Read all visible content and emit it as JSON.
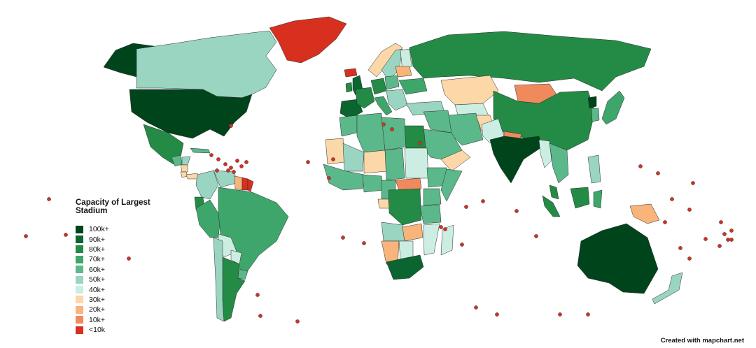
{
  "legend": {
    "title": "Capacity of Largest Stadium",
    "items": [
      {
        "label": "100k+",
        "color": "#00441b"
      },
      {
        "label": "90k+",
        "color": "#0b6530"
      },
      {
        "label": "80k+",
        "color": "#238b45"
      },
      {
        "label": "70k+",
        "color": "#3ea66b"
      },
      {
        "label": "60k+",
        "color": "#5bb88a"
      },
      {
        "label": "50k+",
        "color": "#99d5c1"
      },
      {
        "label": "40k+",
        "color": "#cceee2"
      },
      {
        "label": "30k+",
        "color": "#fcd7a8"
      },
      {
        "label": "20k+",
        "color": "#f8b47a"
      },
      {
        "label": "10k+",
        "color": "#f08a5d"
      },
      {
        "label": "<10k",
        "color": "#d7301f"
      }
    ]
  },
  "credit": "Created with mapchart.net",
  "regions": [
    {
      "name": "canada",
      "tier": "50k+"
    },
    {
      "name": "greenland",
      "tier": "<10k"
    },
    {
      "name": "usa",
      "tier": "100k+"
    },
    {
      "name": "alaska",
      "tier": "100k+"
    },
    {
      "name": "mexico",
      "tier": "80k+"
    },
    {
      "name": "guatemala",
      "tier": "60k+"
    },
    {
      "name": "honduras",
      "tier": "50k+"
    },
    {
      "name": "nicaragua",
      "tier": "30k+"
    },
    {
      "name": "costa-rica",
      "tier": "30k+"
    },
    {
      "name": "panama",
      "tier": "30k+"
    },
    {
      "name": "cuba",
      "tier": "60k+"
    },
    {
      "name": "colombia",
      "tier": "50k+"
    },
    {
      "name": "venezuela",
      "tier": "50k+"
    },
    {
      "name": "guyana",
      "tier": "20k+"
    },
    {
      "name": "suriname",
      "tier": "<10k"
    },
    {
      "name": "french-guiana",
      "tier": "<10k"
    },
    {
      "name": "ecuador",
      "tier": "80k+"
    },
    {
      "name": "peru",
      "tier": "70k+"
    },
    {
      "name": "brazil",
      "tier": "70k+"
    },
    {
      "name": "bolivia",
      "tier": "40k+"
    },
    {
      "name": "paraguay",
      "tier": "40k+"
    },
    {
      "name": "chile",
      "tier": "50k+"
    },
    {
      "name": "argentina",
      "tier": "80k+"
    },
    {
      "name": "uruguay",
      "tier": "60k+"
    },
    {
      "name": "iceland",
      "tier": "<10k"
    },
    {
      "name": "ireland",
      "tier": "80k+"
    },
    {
      "name": "uk",
      "tier": "90k+"
    },
    {
      "name": "norway",
      "tier": "30k+"
    },
    {
      "name": "sweden",
      "tier": "50k+"
    },
    {
      "name": "finland",
      "tier": "40k+"
    },
    {
      "name": "iberia",
      "tier": "90k+"
    },
    {
      "name": "france",
      "tier": "80k+"
    },
    {
      "name": "germany",
      "tier": "80k+"
    },
    {
      "name": "poland",
      "tier": "60k+"
    },
    {
      "name": "baltics",
      "tier": "20k+"
    },
    {
      "name": "italy",
      "tier": "70k+"
    },
    {
      "name": "balkans",
      "tier": "50k+"
    },
    {
      "name": "ukraine",
      "tier": "70k+"
    },
    {
      "name": "turkey",
      "tier": "50k+"
    },
    {
      "name": "russia",
      "tier": "80k+"
    },
    {
      "name": "kazakhstan",
      "tier": "30k+"
    },
    {
      "name": "central-asia",
      "tier": "40k+"
    },
    {
      "name": "mongolia",
      "tier": "10k+"
    },
    {
      "name": "china",
      "tier": "80k+"
    },
    {
      "name": "korea",
      "tier": "60k+"
    },
    {
      "name": "north-korea",
      "tier": "100k+"
    },
    {
      "name": "japan",
      "tier": "70k+"
    },
    {
      "name": "iran",
      "tier": "60k+"
    },
    {
      "name": "iraq-syria",
      "tier": "60k+"
    },
    {
      "name": "saudi-arabia",
      "tier": "60k+"
    },
    {
      "name": "yemen-oman",
      "tier": "30k+"
    },
    {
      "name": "afghanistan",
      "tier": "30k+"
    },
    {
      "name": "pakistan",
      "tier": "40k+"
    },
    {
      "name": "india",
      "tier": "100k+"
    },
    {
      "name": "nepal",
      "tier": "10k+"
    },
    {
      "name": "myanmar",
      "tier": "40k+"
    },
    {
      "name": "indochina",
      "tier": "60k+"
    },
    {
      "name": "malaysia",
      "tier": "80k+"
    },
    {
      "name": "sumatra",
      "tier": "80k+"
    },
    {
      "name": "borneo",
      "tier": "80k+"
    },
    {
      "name": "sulawesi",
      "tier": "70k+"
    },
    {
      "name": "philippines",
      "tier": "50k+"
    },
    {
      "name": "papua-new-guinea",
      "tier": "20k+"
    },
    {
      "name": "australia",
      "tier": "100k+"
    },
    {
      "name": "new-zealand",
      "tier": "50k+"
    },
    {
      "name": "morocco",
      "tier": "60k+"
    },
    {
      "name": "algeria",
      "tier": "60k+"
    },
    {
      "name": "libya",
      "tier": "60k+"
    },
    {
      "name": "egypt",
      "tier": "80k+"
    },
    {
      "name": "mauritania",
      "tier": "30k+"
    },
    {
      "name": "mali",
      "tier": "50k+"
    },
    {
      "name": "niger",
      "tier": "30k+"
    },
    {
      "name": "chad",
      "tier": "60k+"
    },
    {
      "name": "sudan",
      "tier": "40k+"
    },
    {
      "name": "ethiopia",
      "tier": "60k+"
    },
    {
      "name": "somalia",
      "tier": "60k+"
    },
    {
      "name": "west-africa",
      "tier": "60k+"
    },
    {
      "name": "nigeria",
      "tier": "60k+"
    },
    {
      "name": "cameroon",
      "tier": "60k+"
    },
    {
      "name": "car",
      "tier": "10k+"
    },
    {
      "name": "gabon",
      "tier": "30k+"
    },
    {
      "name": "drc",
      "tier": "80k+"
    },
    {
      "name": "kenya",
      "tier": "60k+"
    },
    {
      "name": "tanzania",
      "tier": "60k+"
    },
    {
      "name": "angola",
      "tier": "50k+"
    },
    {
      "name": "zambia",
      "tier": "20k+"
    },
    {
      "name": "mozambique",
      "tier": "40k+"
    },
    {
      "name": "namibia",
      "tier": "20k+"
    },
    {
      "name": "botswana",
      "tier": "40k+"
    },
    {
      "name": "south-africa",
      "tier": "90k+"
    },
    {
      "name": "madagascar",
      "tier": "40k+"
    }
  ]
}
